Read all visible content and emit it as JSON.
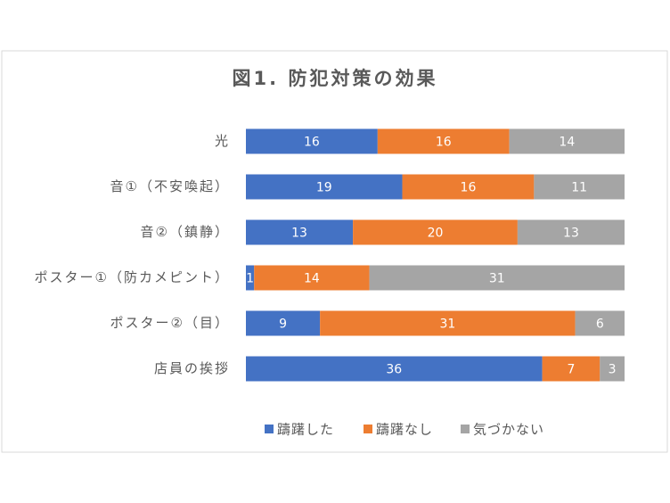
{
  "chart_data": {
    "type": "stacked-barh",
    "title": "図1. 防犯対策の効果",
    "categories": [
      "光",
      "音①（不安喚起）",
      "音②（鎮静）",
      "ポスター①（防カメピント）",
      "ポスター②（目）",
      "店員の挨拶"
    ],
    "series": [
      {
        "name": "躊躇した",
        "color": "#4472c4",
        "values": [
          16,
          19,
          13,
          1,
          9,
          36
        ]
      },
      {
        "name": "躊躇なし",
        "color": "#ed7d31",
        "values": [
          16,
          16,
          20,
          14,
          31,
          7
        ]
      },
      {
        "name": "気づかない",
        "color": "#a5a5a5",
        "values": [
          14,
          11,
          13,
          31,
          6,
          3
        ]
      }
    ]
  }
}
